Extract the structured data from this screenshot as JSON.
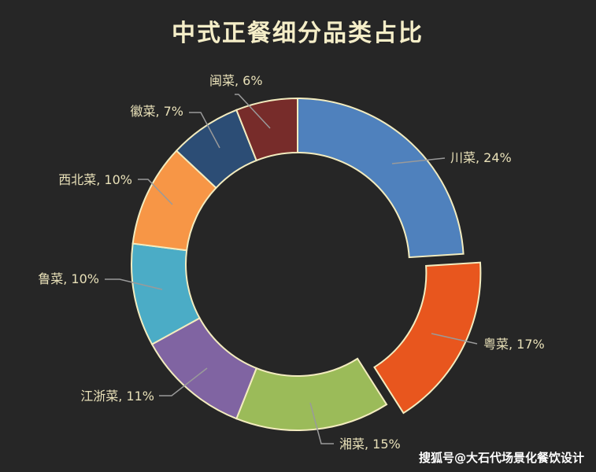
{
  "chart_data": {
    "type": "pie",
    "variant": "donut",
    "title": "中式正餐细分品类占比",
    "start_angle_deg": 0,
    "direction": "clockwise",
    "slices": [
      {
        "label": "川菜, 24%",
        "name": "川菜",
        "value": 24,
        "color": "#4f81bd",
        "exploded": false
      },
      {
        "label": "粤菜, 17%",
        "name": "粤菜",
        "value": 17,
        "color": "#e8561e",
        "exploded": true
      },
      {
        "label": "湘菜, 15%",
        "name": "湘菜",
        "value": 15,
        "color": "#9bbb59",
        "exploded": false
      },
      {
        "label": "江浙菜, 11%",
        "name": "江浙菜",
        "value": 11,
        "color": "#8064a2",
        "exploded": false
      },
      {
        "label": "鲁菜, 10%",
        "name": "鲁菜",
        "value": 10,
        "color": "#4bacc6",
        "exploded": false
      },
      {
        "label": "西北菜, 10%",
        "name": "西北菜",
        "value": 10,
        "color": "#f79646",
        "exploded": false
      },
      {
        "label": "徽菜, 7%",
        "name": "徽菜",
        "value": 7,
        "color": "#2c4d75",
        "exploded": false
      },
      {
        "label": "闽菜, 6%",
        "name": "闽菜",
        "value": 6,
        "color": "#772c2a",
        "exploded": false
      }
    ],
    "colors": {
      "background": "#262626",
      "slice_border": "#f3ecbf",
      "title": "#f5eec8",
      "label": "#e8e0b8",
      "leader_line": "#9a9a9a"
    }
  },
  "watermark": "搜狐号@大石代场景化餐饮设计"
}
